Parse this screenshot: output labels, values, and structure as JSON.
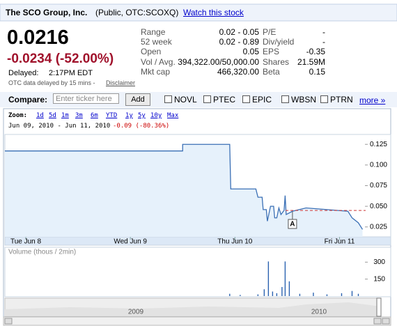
{
  "header": {
    "company": "The SCO Group, Inc.",
    "listing": "(Public, OTC:SCOXQ)",
    "watch": "Watch this stock"
  },
  "quote": {
    "price": "0.0216",
    "change": "-0.0234 (-52.00%)",
    "delayed_label": "Delayed:",
    "delayed_time": "2:17PM EDT",
    "delay_note": "OTC data delayed by 15 mins -",
    "disclaimer": "Disclaimer"
  },
  "stats": [
    [
      "Range",
      "0.02 - 0.05",
      "P/E",
      "-"
    ],
    [
      "52 week",
      "0.02 - 0.89",
      "Div/yield",
      "-"
    ],
    [
      "Open",
      "0.05",
      "EPS",
      "-0.35"
    ],
    [
      "Vol / Avg.",
      "394,322.00/50,000.00",
      "Shares",
      "21.59M"
    ],
    [
      "Mkt cap",
      "466,320.00",
      "Beta",
      "0.15"
    ]
  ],
  "compare": {
    "label": "Compare:",
    "placeholder": "Enter ticker here",
    "button": "Add",
    "tickers": [
      "NOVL",
      "PTEC",
      "EPIC",
      "WBSN",
      "PTRN"
    ],
    "more": "more »"
  },
  "zoom": {
    "label": "Zoom:",
    "options": [
      "1d",
      "5d",
      "1m",
      "3m",
      "6m",
      "YTD",
      "1y",
      "5y",
      "10y",
      "Max"
    ]
  },
  "date_range": {
    "text": "Jun 09, 2010 - Jun 11, 2010",
    "change": "-0.09 (-80.36%)"
  },
  "chart_data": [
    {
      "type": "line",
      "color": "#3a6fb5",
      "fill": "#e6f1fb",
      "x": [
        -0.2,
        1.5,
        1.5,
        1.95,
        1.96,
        2.2,
        2.22,
        2.26,
        2.27,
        2.3,
        2.31,
        2.34,
        2.37,
        2.38,
        2.4,
        2.42,
        2.44,
        2.47,
        2.48,
        2.49,
        2.55,
        2.68,
        2.88,
        3.08,
        3.12,
        3.18,
        3.22
      ],
      "values": [
        0.117,
        0.117,
        0.125,
        0.125,
        0.071,
        0.071,
        0.061,
        0.061,
        0.046,
        0.046,
        0.032,
        0.05,
        0.05,
        0.036,
        0.036,
        0.048,
        0.04,
        0.045,
        0.063,
        0.04,
        0.044,
        0.048,
        0.046,
        0.044,
        0.036,
        0.03,
        0.022
      ],
      "xlim": [
        -0.2,
        3.25
      ],
      "ylim": [
        0.013,
        0.137
      ],
      "xticks": [
        {
          "value": 0,
          "label": "Tue Jun 8"
        },
        {
          "value": 1,
          "label": "Wed Jun 9"
        },
        {
          "value": 2,
          "label": "Thu Jun 10"
        },
        {
          "value": 3,
          "label": "Fri Jun 11"
        }
      ],
      "yticks": [
        0.125,
        {
          "value": 0.1,
          "label": "0.100"
        },
        0.075,
        {
          "value": 0.05,
          "label": "0.050"
        },
        0.025
      ],
      "previous_close": 0.045,
      "previous_close_color": "#cc3333",
      "annotations": [
        {
          "label": "A",
          "x": 2.55
        }
      ]
    },
    {
      "type": "bar",
      "title": "Volume (thous / 2min)",
      "color": "#2a62b0",
      "x": [
        1.95,
        2.05,
        2.22,
        2.28,
        2.32,
        2.36,
        2.4,
        2.45,
        2.48,
        2.52,
        2.62,
        2.75,
        2.88,
        3.02,
        3.12,
        3.18
      ],
      "values": [
        20,
        10,
        15,
        60,
        306,
        40,
        25,
        80,
        306,
        130,
        20,
        30,
        15,
        25,
        45,
        20
      ],
      "xlim": [
        -0.2,
        3.25
      ],
      "ylim": [
        0,
        339
      ],
      "yticks": [
        150,
        300
      ]
    }
  ],
  "navigator": {
    "labels": [
      "2009",
      "2010"
    ]
  }
}
